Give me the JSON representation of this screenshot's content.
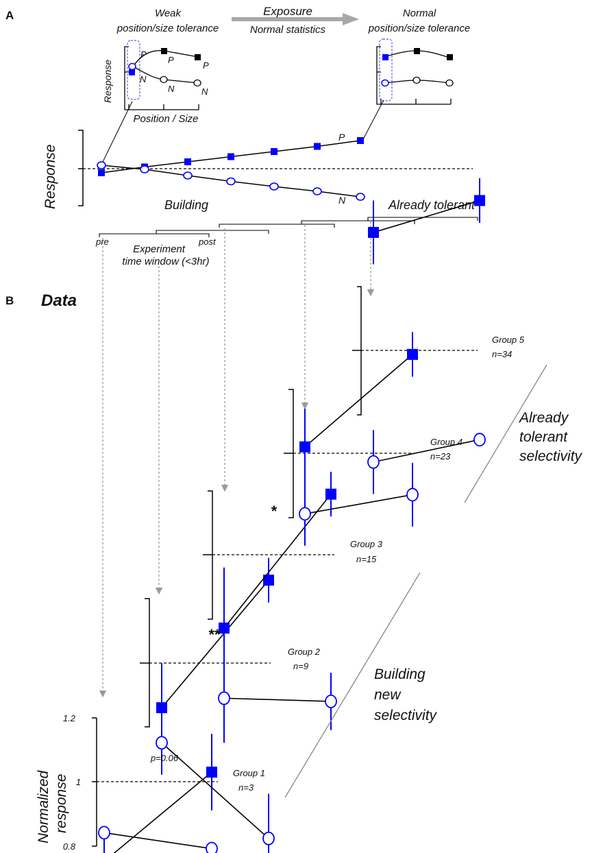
{
  "panel_a": {
    "letter": "A",
    "top_left_title_1": "Weak",
    "top_left_title_2": "position/size tolerance",
    "arrow_title": "Exposure",
    "arrow_subtitle": "Normal statistics",
    "top_right_title_1": "Normal",
    "top_right_title_2": "position/size tolerance",
    "inset_ylabel": "Response",
    "inset_xlabel": "Position / Size",
    "inset_p_label": "P",
    "inset_n_label": "N",
    "main_ylabel": "Response",
    "main_p_label": "P",
    "main_n_label": "N",
    "building_label": "Building",
    "tolerant_label": "Already tolerant",
    "window_pre": "pre",
    "window_post": "post",
    "window_label_1": "Experiment",
    "window_label_2": "time window (<3hr)"
  },
  "panel_b": {
    "letter": "B",
    "title": "Data",
    "ylabel_1": "Normalized",
    "ylabel_2": "response",
    "ticks": [
      "1.2",
      "1",
      "0.8"
    ],
    "building_note": [
      "Building",
      "new",
      "selectivity"
    ],
    "tolerant_note": [
      "Already",
      "tolerant",
      "selectivity"
    ]
  },
  "chart_data": [
    {
      "type": "line",
      "panel": "A-inset-left",
      "x_ticks": 3,
      "series": [
        {
          "label": "P",
          "marker": "filled-square",
          "color": "#000000",
          "values": [
            0.45,
            1.0,
            0.75
          ]
        },
        {
          "label": "N",
          "marker": "open-circle",
          "color": "#000000",
          "values": [
            0.45,
            0.1,
            -0.05
          ]
        }
      ],
      "highlight": "first position (blue)"
    },
    {
      "type": "line",
      "panel": "A-inset-right",
      "x_ticks": 3,
      "series": [
        {
          "marker": "filled-square",
          "values": [
            0.8,
            1.0,
            0.8
          ]
        },
        {
          "marker": "open-circle",
          "values": [
            0.0,
            0.1,
            0.0
          ]
        }
      ]
    },
    {
      "type": "line",
      "panel": "A-main",
      "x_steps": 7,
      "series": [
        {
          "label": "P",
          "marker": "filled-square",
          "color": "#0000ff",
          "values": [
            -0.12,
            0.05,
            0.2,
            0.35,
            0.5,
            0.65,
            0.82
          ]
        },
        {
          "label": "N",
          "marker": "open-circle",
          "color": "#0000ff",
          "values": [
            0.1,
            -0.02,
            -0.2,
            -0.37,
            -0.52,
            -0.66,
            -0.82
          ]
        }
      ]
    },
    {
      "type": "line",
      "panel": "B",
      "ylabel": "Normalized response",
      "ylim": [
        0.8,
        1.2
      ],
      "x": [
        "pre",
        "post"
      ],
      "groups": [
        {
          "name": "Group 1",
          "n": "n=3",
          "annotation": "p=0.06",
          "P": [
            0.875,
            1.015
          ],
          "N": [
            0.92,
            0.895
          ],
          "P_err": [
            0.045,
            0.06
          ],
          "N_err": [
            0.0,
            0.0
          ]
        },
        {
          "name": "Group 2",
          "n": "n=9",
          "annotation": "**",
          "P": [
            0.93,
            1.13
          ],
          "N": [
            0.875,
            0.725
          ],
          "P_err": [
            0.07,
            0.035
          ],
          "N_err": [
            0.05,
            0.07
          ]
        },
        {
          "name": "Group 3",
          "n": "n=15",
          "annotation": "*",
          "P": [
            0.885,
            1.095
          ],
          "N": [
            0.775,
            0.77
          ],
          "P_err": [
            0.095,
            0.035
          ],
          "N_err": [
            0.07,
            0.045
          ]
        },
        {
          "name": "Group 4",
          "n": "n=23",
          "annotation": "",
          "P": [
            1.01,
            1.155
          ],
          "N": [
            0.905,
            0.935
          ],
          "P_err": [
            0.06,
            0.035
          ],
          "N_err": [
            0.05,
            0.05
          ]
        },
        {
          "name": "Group 5",
          "n": "n=34",
          "annotation": "",
          "P": [
            1.185,
            1.235
          ],
          "N": [
            0.825,
            0.86
          ],
          "P_err": [
            0.05,
            0.035
          ],
          "N_err": [
            0.05,
            0.0
          ]
        }
      ]
    }
  ]
}
